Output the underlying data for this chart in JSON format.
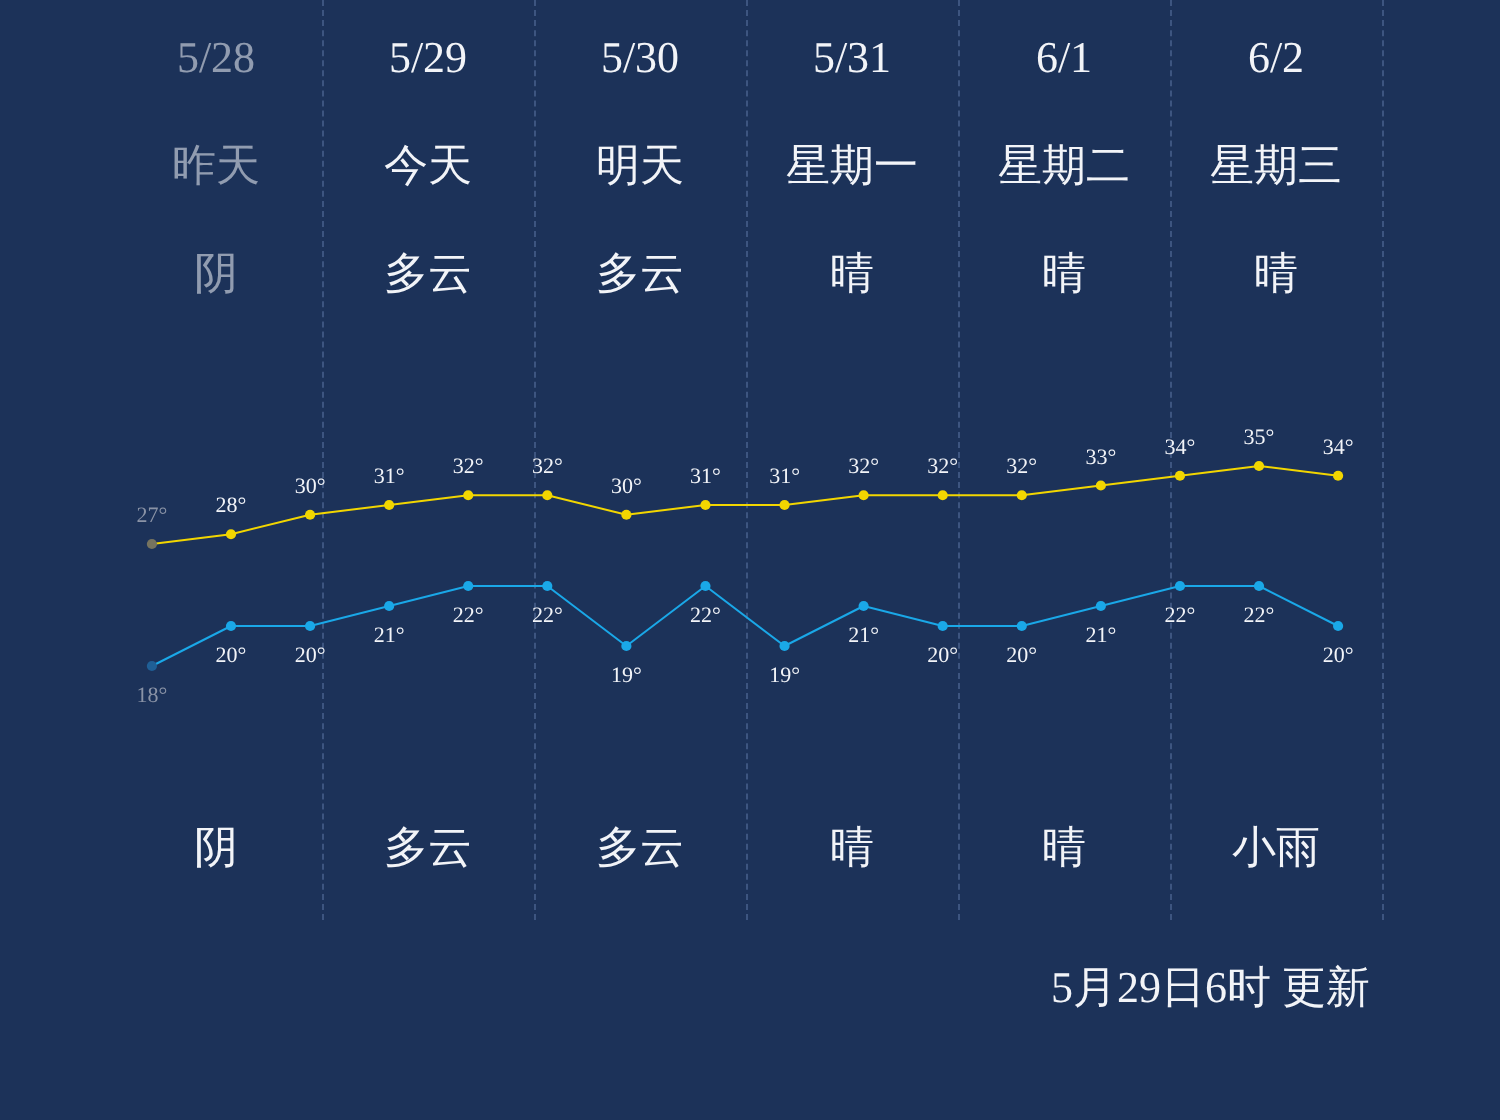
{
  "chart_data": [
    {
      "type": "line",
      "categories": [
        null,
        null,
        null,
        null,
        null,
        null,
        null,
        null,
        null,
        null,
        null,
        null,
        null,
        null,
        null,
        null
      ],
      "series": [
        {
          "color": "#f2d600",
          "colors": [
            "#76735f",
            "#f2d600",
            "#f2d600",
            "#f2d600",
            "#f2d600",
            "#f2d600",
            "#f2d600",
            "#f2d600",
            "#f2d600",
            "#f2d600",
            "#f2d600",
            "#f2d600",
            "#f2d600",
            "#f2d600",
            "#f2d600",
            "#f2d600"
          ],
          "values": [
            27,
            28,
            30,
            31,
            32,
            32,
            30,
            31,
            31,
            32,
            32,
            32,
            33,
            34,
            35,
            34
          ],
          "value_labels": [
            "27°",
            "28°",
            "30°",
            "31°",
            "32°",
            "32°",
            "30°",
            "31°",
            "31°",
            "32°",
            "32°",
            "32°",
            "33°",
            "34°",
            "35°",
            "34°"
          ]
        }
      ],
      "tick_labels": false,
      "marker": "circle",
      "annotations": [
        "5/28",
        "5/29",
        "5/30",
        "5/31",
        "6/1",
        "6/2",
        "昨天",
        "今天",
        "明天",
        "星期一",
        "星期二",
        "星期三",
        "阴",
        "多云",
        "多云",
        "晴",
        "晴",
        "晴",
        "阴",
        "多云",
        "多云",
        "晴",
        "晴",
        "小雨",
        "5月29日6时 更新"
      ]
    },
    {
      "type": "line",
      "categories": [
        null,
        null,
        null,
        null,
        null,
        null,
        null,
        null,
        null,
        null,
        null,
        null,
        null,
        null,
        null,
        null
      ],
      "series": [
        {
          "color": "#1aa8e8",
          "colors": [
            "#1f5f96",
            "#1aa8e8",
            "#1aa8e8",
            "#1aa8e8",
            "#1aa8e8",
            "#1aa8e8",
            "#1aa8e8",
            "#1aa8e8",
            "#1aa8e8",
            "#1aa8e8",
            "#1aa8e8",
            "#1aa8e8",
            "#1aa8e8",
            "#1aa8e8",
            "#1aa8e8",
            "#1aa8e8"
          ],
          "values": [
            18,
            20,
            20,
            21,
            22,
            22,
            19,
            22,
            19,
            21,
            20,
            20,
            21,
            22,
            22,
            20
          ],
          "value_labels": [
            "18°",
            "20°",
            "20°",
            "21°",
            "22°",
            "22°",
            "19°",
            "22°",
            "19°",
            "21°",
            "20°",
            "20°",
            "21°",
            "22°",
            "22°",
            "20°"
          ]
        }
      ],
      "tick_labels": false,
      "marker": "circle"
    }
  ]
}
